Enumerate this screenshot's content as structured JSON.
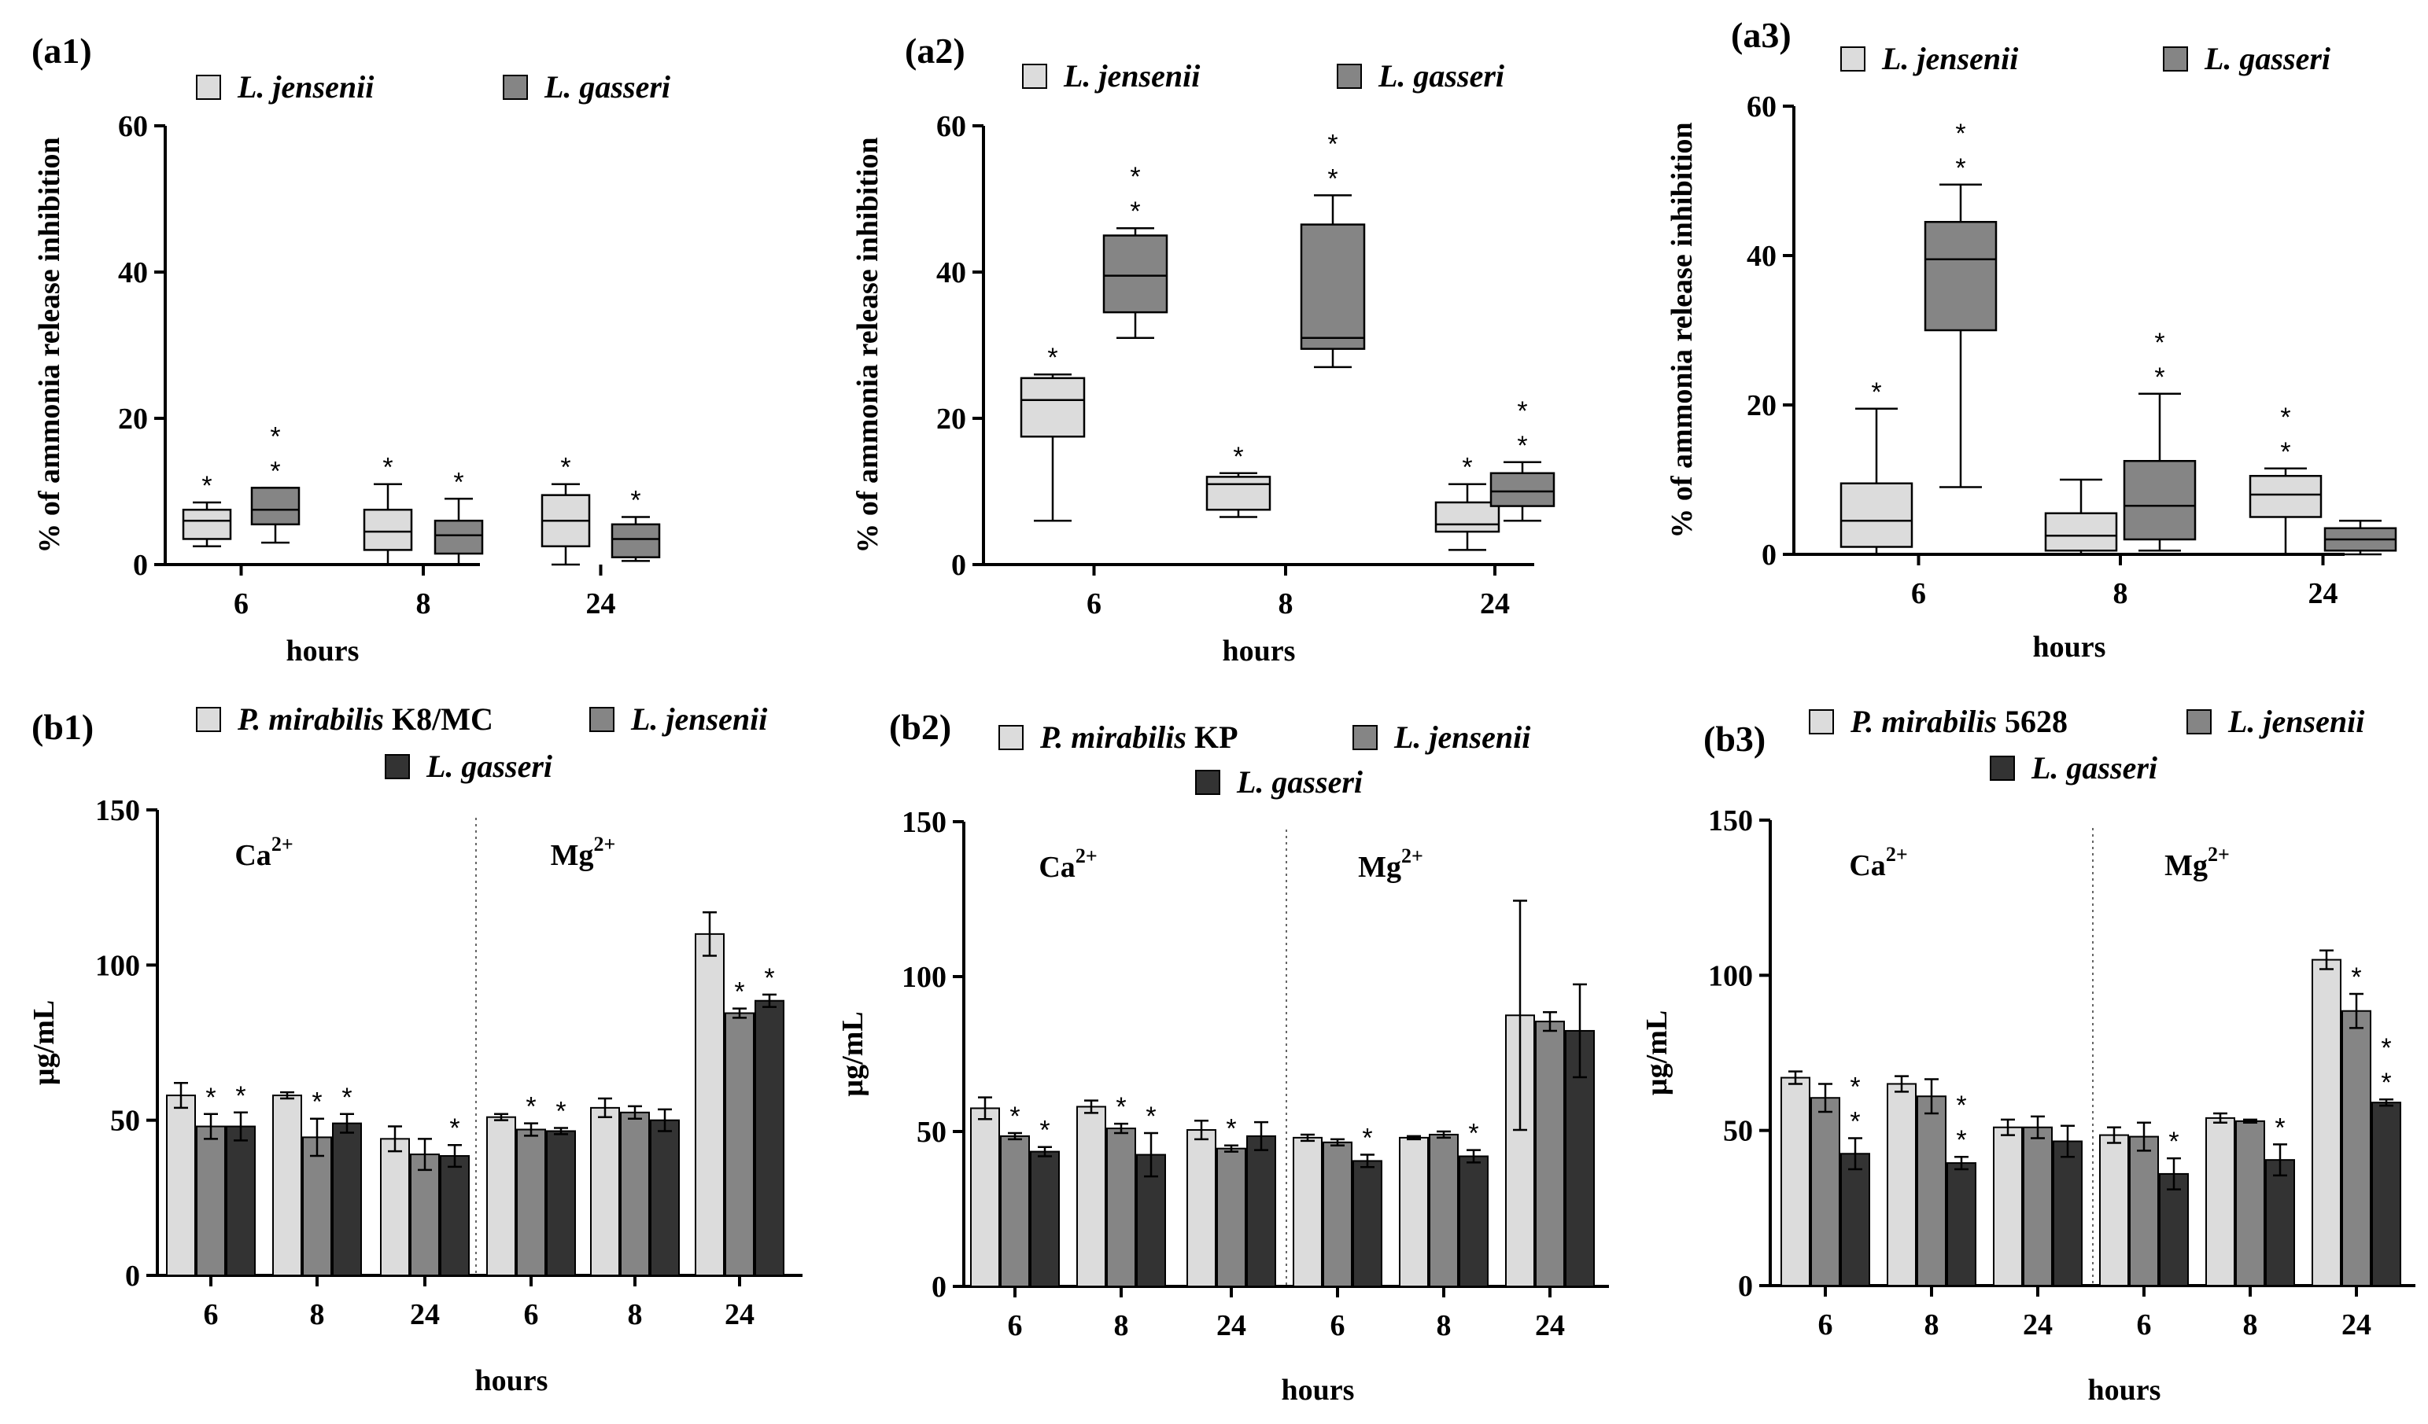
{
  "colors": {
    "light": "#dcdcdc",
    "mid": "#858585",
    "dark": "#333333"
  },
  "chart_data": [
    {
      "panel": "(a1)",
      "type": "box",
      "ylabel": "% of ammonia release inhibition",
      "xlabel": "hours",
      "ylim": [
        0,
        60
      ],
      "yticks": [
        0,
        20,
        40,
        60
      ],
      "categories": [
        "6",
        "8",
        "24"
      ],
      "legend": [
        {
          "label": "L. jensenii",
          "color": "light"
        },
        {
          "label": "L. gasseri",
          "color": "mid"
        }
      ],
      "series": [
        {
          "name": "L. jensenii",
          "color": "light",
          "boxes": [
            {
              "min": 2.5,
              "q1": 3.5,
              "median": 6,
              "q3": 7.5,
              "max": 8.5,
              "sig": "*"
            },
            {
              "min": 0,
              "q1": 2,
              "median": 4.5,
              "q3": 7.5,
              "max": 11,
              "sig": "*"
            },
            {
              "min": 0,
              "q1": 2.5,
              "median": 6,
              "q3": 9.5,
              "max": 11,
              "sig": "*"
            }
          ]
        },
        {
          "name": "L. gasseri",
          "color": "mid",
          "boxes": [
            {
              "min": 3,
              "q1": 5.5,
              "median": 7.5,
              "q3": 10.5,
              "max": 10.5,
              "sig": "**"
            },
            {
              "min": 0,
              "q1": 1.5,
              "median": 4,
              "q3": 6,
              "max": 9,
              "sig": "*"
            },
            {
              "min": 0.5,
              "q1": 1,
              "median": 3.5,
              "q3": 5.5,
              "max": 6.5,
              "sig": "*"
            }
          ]
        }
      ]
    },
    {
      "panel": "(a2)",
      "type": "box",
      "ylabel": "% of ammonia release inhibition",
      "xlabel": "hours",
      "ylim": [
        0,
        60
      ],
      "yticks": [
        0,
        20,
        40,
        60
      ],
      "categories": [
        "6",
        "8",
        "24"
      ],
      "legend": [
        {
          "label": "L. jensenii",
          "color": "light"
        },
        {
          "label": "L. gasseri",
          "color": "mid"
        }
      ],
      "series": [
        {
          "name": "L. jensenii",
          "color": "light",
          "boxes": [
            {
              "min": 6,
              "q1": 17.5,
              "median": 22.5,
              "q3": 25.5,
              "max": 26,
              "sig": "*"
            },
            {
              "min": 6.5,
              "q1": 7.5,
              "median": 11,
              "q3": 12,
              "max": 12.5,
              "sig": "*"
            },
            {
              "min": 2,
              "q1": 4.5,
              "median": 5.5,
              "q3": 8.5,
              "max": 11,
              "sig": "*"
            }
          ]
        },
        {
          "name": "L. gasseri",
          "color": "mid",
          "boxes": [
            {
              "min": 31,
              "q1": 34.5,
              "median": 39.5,
              "q3": 45,
              "max": 46,
              "sig": "**"
            },
            {
              "min": 27,
              "q1": 29.5,
              "median": 31,
              "q3": 46.5,
              "max": 50.5,
              "sig": "**"
            },
            {
              "min": 6,
              "q1": 8,
              "median": 10,
              "q3": 12.5,
              "max": 14,
              "sig": "**"
            }
          ]
        }
      ]
    },
    {
      "panel": "(a3)",
      "type": "box",
      "ylabel": "% of ammonia release inhibition",
      "xlabel": "hours",
      "ylim": [
        0,
        60
      ],
      "yticks": [
        0,
        20,
        40,
        60
      ],
      "categories": [
        "6",
        "8",
        "24"
      ],
      "legend": [
        {
          "label": "L. jensenii",
          "color": "light"
        },
        {
          "label": "L. gasseri",
          "color": "mid"
        }
      ],
      "series": [
        {
          "name": "L. jensenii",
          "color": "light",
          "boxes": [
            {
              "min": 0,
              "q1": 1,
              "median": 4.5,
              "q3": 9.5,
              "max": 19.5,
              "sig": "*"
            },
            {
              "min": 0,
              "q1": 0.5,
              "median": 2.5,
              "q3": 5.5,
              "max": 10,
              "sig": ""
            },
            {
              "min": 0,
              "q1": 5,
              "median": 8,
              "q3": 10.5,
              "max": 11.5,
              "sig": "**"
            }
          ]
        },
        {
          "name": "L. gasseri",
          "color": "mid",
          "boxes": [
            {
              "min": 9,
              "q1": 30,
              "median": 39.5,
              "q3": 44.5,
              "max": 49.5,
              "sig": "**"
            },
            {
              "min": 0.5,
              "q1": 2,
              "median": 6.5,
              "q3": 12.5,
              "max": 21.5,
              "sig": "**"
            },
            {
              "min": 0,
              "q1": 0.5,
              "median": 2,
              "q3": 3.5,
              "max": 4.5,
              "sig": ""
            }
          ]
        }
      ]
    },
    {
      "panel": "(b1)",
      "type": "bar",
      "ylabel": "µg/mL",
      "xlabel": "hours",
      "ylim": [
        0,
        150
      ],
      "yticks": [
        0,
        50,
        100,
        150
      ],
      "categories": [
        "6",
        "8",
        "24",
        "6",
        "8",
        "24"
      ],
      "ion_labels": [
        {
          "base": "Ca",
          "sup": "2+",
          "at_group": 0.5
        },
        {
          "base": "Mg",
          "sup": "2+",
          "at_group": 3.5
        }
      ],
      "legend": [
        {
          "label": "P. mirabilis",
          "suffix": " K8/MC",
          "color": "light"
        },
        {
          "label": "L. jensenii",
          "suffix": "",
          "color": "mid"
        },
        {
          "label": "L. gasseri",
          "suffix": "",
          "color": "dark"
        }
      ],
      "series": [
        {
          "name": "P. mirabilis K8/MC",
          "color": "light",
          "values": [
            58,
            58,
            44,
            51,
            54,
            110
          ],
          "errors": [
            4,
            1,
            4,
            1,
            3,
            7
          ],
          "sig": [
            "",
            "",
            "",
            "",
            "",
            ""
          ]
        },
        {
          "name": "L. jensenii",
          "color": "mid",
          "values": [
            48,
            44.5,
            39,
            47,
            52.5,
            84.5
          ],
          "errors": [
            4,
            6,
            5,
            2,
            2,
            1.5
          ],
          "sig": [
            "*",
            "*",
            "",
            "*",
            "",
            "*"
          ]
        },
        {
          "name": "L. gasseri",
          "color": "dark",
          "values": [
            48,
            49,
            38.5,
            46.5,
            50,
            88.5
          ],
          "errors": [
            4.5,
            3,
            3.5,
            1,
            3.5,
            2
          ],
          "sig": [
            "*",
            "*",
            "*",
            "*",
            "",
            "*"
          ]
        }
      ]
    },
    {
      "panel": "(b2)",
      "type": "bar",
      "ylabel": "µg/mL",
      "xlabel": "hours",
      "ylim": [
        0,
        150
      ],
      "yticks": [
        0,
        50,
        100,
        150
      ],
      "categories": [
        "6",
        "8",
        "24",
        "6",
        "8",
        "24"
      ],
      "ion_labels": [
        {
          "base": "Ca",
          "sup": "2+",
          "at_group": 0.5
        },
        {
          "base": "Mg",
          "sup": "2+",
          "at_group": 3.5
        }
      ],
      "legend": [
        {
          "label": "P. mirabilis",
          "suffix": " KP",
          "color": "light"
        },
        {
          "label": "L. jensenii",
          "suffix": "",
          "color": "mid"
        },
        {
          "label": "L. gasseri",
          "suffix": "",
          "color": "dark"
        }
      ],
      "series": [
        {
          "name": "P. mirabilis KP",
          "color": "light",
          "values": [
            57.5,
            58,
            50.5,
            48,
            48,
            87.5
          ],
          "errors": [
            3.5,
            2,
            3,
            1,
            0.5,
            37
          ],
          "sig": [
            "",
            "",
            "",
            "",
            "",
            ""
          ]
        },
        {
          "name": "L. jensenii",
          "color": "mid",
          "values": [
            48.5,
            51,
            44.5,
            46.5,
            49,
            85.5
          ],
          "errors": [
            1,
            1.5,
            1,
            1,
            1,
            3
          ],
          "sig": [
            "*",
            "*",
            "*",
            "",
            "",
            ""
          ]
        },
        {
          "name": "L. gasseri",
          "color": "dark",
          "values": [
            43.5,
            42.5,
            48.5,
            40.5,
            42,
            82.5
          ],
          "errors": [
            1.5,
            7,
            4.5,
            2,
            2,
            15
          ],
          "sig": [
            "*",
            "*",
            "",
            "*",
            "*",
            ""
          ]
        }
      ]
    },
    {
      "panel": "(b3)",
      "type": "bar",
      "ylabel": "µg/mL",
      "xlabel": "hours",
      "ylim": [
        0,
        150
      ],
      "yticks": [
        0,
        50,
        100,
        150
      ],
      "categories": [
        "6",
        "8",
        "24",
        "6",
        "8",
        "24"
      ],
      "ion_labels": [
        {
          "base": "Ca",
          "sup": "2+",
          "at_group": 0.5
        },
        {
          "base": "Mg",
          "sup": "2+",
          "at_group": 3.5
        }
      ],
      "legend": [
        {
          "label": "P. mirabilis",
          "suffix": " 5628",
          "color": "light"
        },
        {
          "label": "L. jensenii",
          "suffix": "",
          "color": "mid"
        },
        {
          "label": "L. gasseri",
          "suffix": "",
          "color": "dark"
        }
      ],
      "series": [
        {
          "name": "P. mirabilis 5628",
          "color": "light",
          "values": [
            67,
            65,
            51,
            48.5,
            54,
            105
          ],
          "errors": [
            2,
            2.5,
            2.5,
            2.5,
            1.5,
            3
          ],
          "sig": [
            "",
            "",
            "",
            "",
            "",
            ""
          ]
        },
        {
          "name": "L. jensenii",
          "color": "mid",
          "values": [
            60.5,
            61,
            51,
            48,
            53,
            88.5
          ],
          "errors": [
            4.5,
            5.5,
            3.5,
            4.5,
            0.5,
            5.5
          ],
          "sig": [
            "",
            "",
            "",
            "",
            "",
            "*"
          ]
        },
        {
          "name": "L. gasseri",
          "color": "dark",
          "values": [
            42.5,
            39.5,
            46.5,
            36,
            40.5,
            59
          ],
          "errors": [
            5,
            2,
            5,
            5,
            5,
            1
          ],
          "sig": [
            "**",
            "**",
            "",
            "*",
            "*",
            "**"
          ]
        }
      ]
    }
  ]
}
